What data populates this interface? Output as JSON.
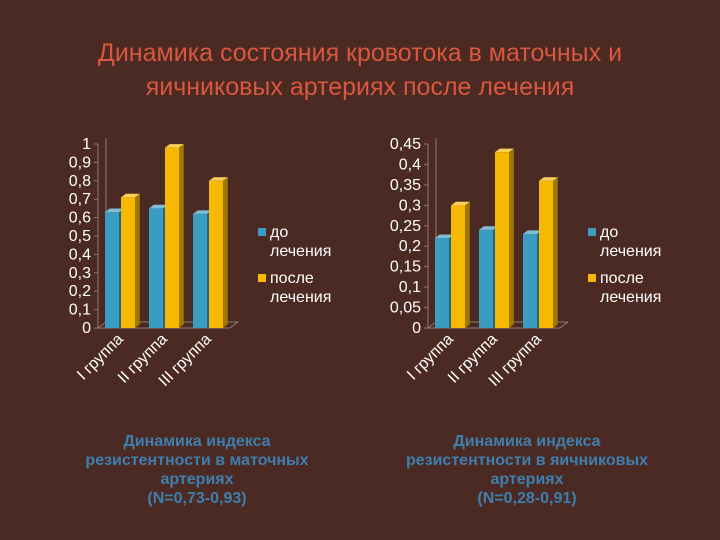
{
  "slide": {
    "title_line1": "Динамика состояния кровотока в маточных и",
    "title_line2": "яичниковых артериях после лечения"
  },
  "colors": {
    "before": "#3a9cc0",
    "after": "#f6b800",
    "axis_text": "#ffffff",
    "title": "#d9573f",
    "caption": "#3e7fb0"
  },
  "chart_data": [
    {
      "type": "bar",
      "style": "3d-clustered",
      "categories": [
        "I группа",
        "II группа",
        "III группа"
      ],
      "series": [
        {
          "name": "до лечения",
          "values": [
            0.63,
            0.65,
            0.62
          ]
        },
        {
          "name": "после лечения",
          "values": [
            0.71,
            0.98,
            0.8
          ]
        }
      ],
      "ylim": [
        0,
        1
      ],
      "ytick_labels": [
        "0",
        "0,1",
        "0,2",
        "0,3",
        "0,4",
        "0,5",
        "0,6",
        "0,7",
        "0,8",
        "0,9",
        "1"
      ],
      "legend_position": "right",
      "grid": false,
      "caption": {
        "line1": "Динамика индекса",
        "line2": "резистентности в маточных",
        "line3": "артериях",
        "line4": "(N=0,73-0,93)"
      }
    },
    {
      "type": "bar",
      "style": "3d-clustered",
      "categories": [
        "I группа",
        "II группа",
        "III группа"
      ],
      "series": [
        {
          "name": "до лечения",
          "values": [
            0.22,
            0.24,
            0.23
          ]
        },
        {
          "name": "после лечения",
          "values": [
            0.3,
            0.43,
            0.36
          ]
        }
      ],
      "ylim": [
        0,
        0.45
      ],
      "ytick_labels": [
        "0",
        "0,05",
        "0,1",
        "0,15",
        "0,2",
        "0,25",
        "0,3",
        "0,35",
        "0,4",
        "0,45"
      ],
      "legend_position": "right",
      "grid": false,
      "caption": {
        "line1": "Динамика индекса",
        "line2": "резистентности в яичниковых",
        "line3": "артериях",
        "line4": "(N=0,28-0,91)"
      }
    }
  ]
}
